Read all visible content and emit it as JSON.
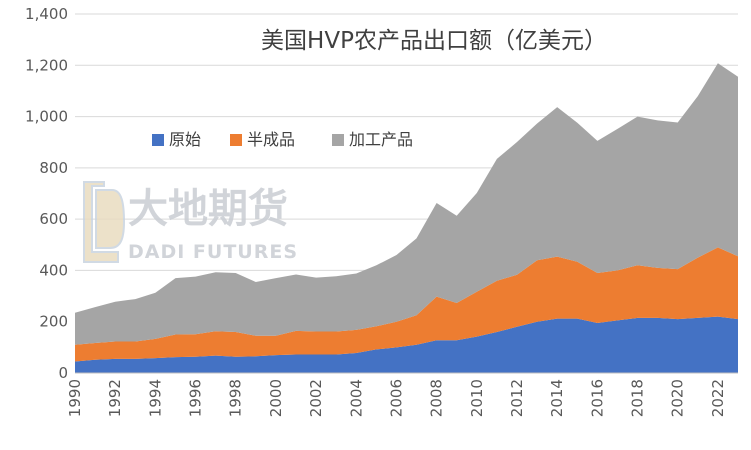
{
  "chart_data": {
    "type": "area",
    "stacked": true,
    "title": "美国HVP农产品出口额（亿美元）",
    "xlabel": "",
    "ylabel": "",
    "ylim": [
      0,
      1400
    ],
    "yticks": [
      0,
      200,
      400,
      600,
      800,
      1000,
      1200,
      1400
    ],
    "ytick_labels": [
      "0",
      "200",
      "400",
      "600",
      "800",
      "1,000",
      "1,200",
      "1,400"
    ],
    "x": [
      1990,
      1991,
      1992,
      1993,
      1994,
      1995,
      1996,
      1997,
      1998,
      1999,
      2000,
      2001,
      2002,
      2003,
      2004,
      2005,
      2006,
      2007,
      2008,
      2009,
      2010,
      2011,
      2012,
      2013,
      2014,
      2015,
      2016,
      2017,
      2018,
      2019,
      2020,
      2021,
      2022,
      2023
    ],
    "xtick_labels": [
      "1990",
      "1992",
      "1994",
      "1996",
      "1998",
      "2000",
      "2002",
      "2004",
      "2006",
      "2008",
      "2010",
      "2012",
      "2014",
      "2016",
      "2018",
      "2020",
      "2022"
    ],
    "grid": true,
    "legend_position": "top-left",
    "series": [
      {
        "name": "原始",
        "color": "#4472C4",
        "values": [
          45,
          52,
          55,
          55,
          58,
          62,
          63,
          68,
          63,
          65,
          70,
          72,
          72,
          72,
          78,
          92,
          100,
          110,
          128,
          128,
          142,
          160,
          180,
          200,
          212,
          212,
          195,
          205,
          215,
          215,
          210,
          215,
          220,
          210
        ]
      },
      {
        "name": "半成品",
        "color": "#ED7D31",
        "values": [
          65,
          65,
          68,
          68,
          75,
          88,
          88,
          95,
          97,
          80,
          75,
          92,
          90,
          90,
          90,
          90,
          100,
          115,
          170,
          145,
          175,
          200,
          203,
          240,
          242,
          222,
          195,
          195,
          205,
          195,
          195,
          235,
          270,
          245
        ]
      },
      {
        "name": "加工产品",
        "color": "#A5A5A5",
        "values": [
          125,
          140,
          155,
          165,
          180,
          220,
          225,
          230,
          230,
          210,
          225,
          220,
          210,
          215,
          220,
          238,
          260,
          300,
          365,
          340,
          385,
          475,
          518,
          533,
          583,
          542,
          515,
          552,
          580,
          575,
          572,
          630,
          718,
          700
        ]
      }
    ]
  },
  "watermark": {
    "cn": "大地期货",
    "en": "DADI FUTURES"
  }
}
